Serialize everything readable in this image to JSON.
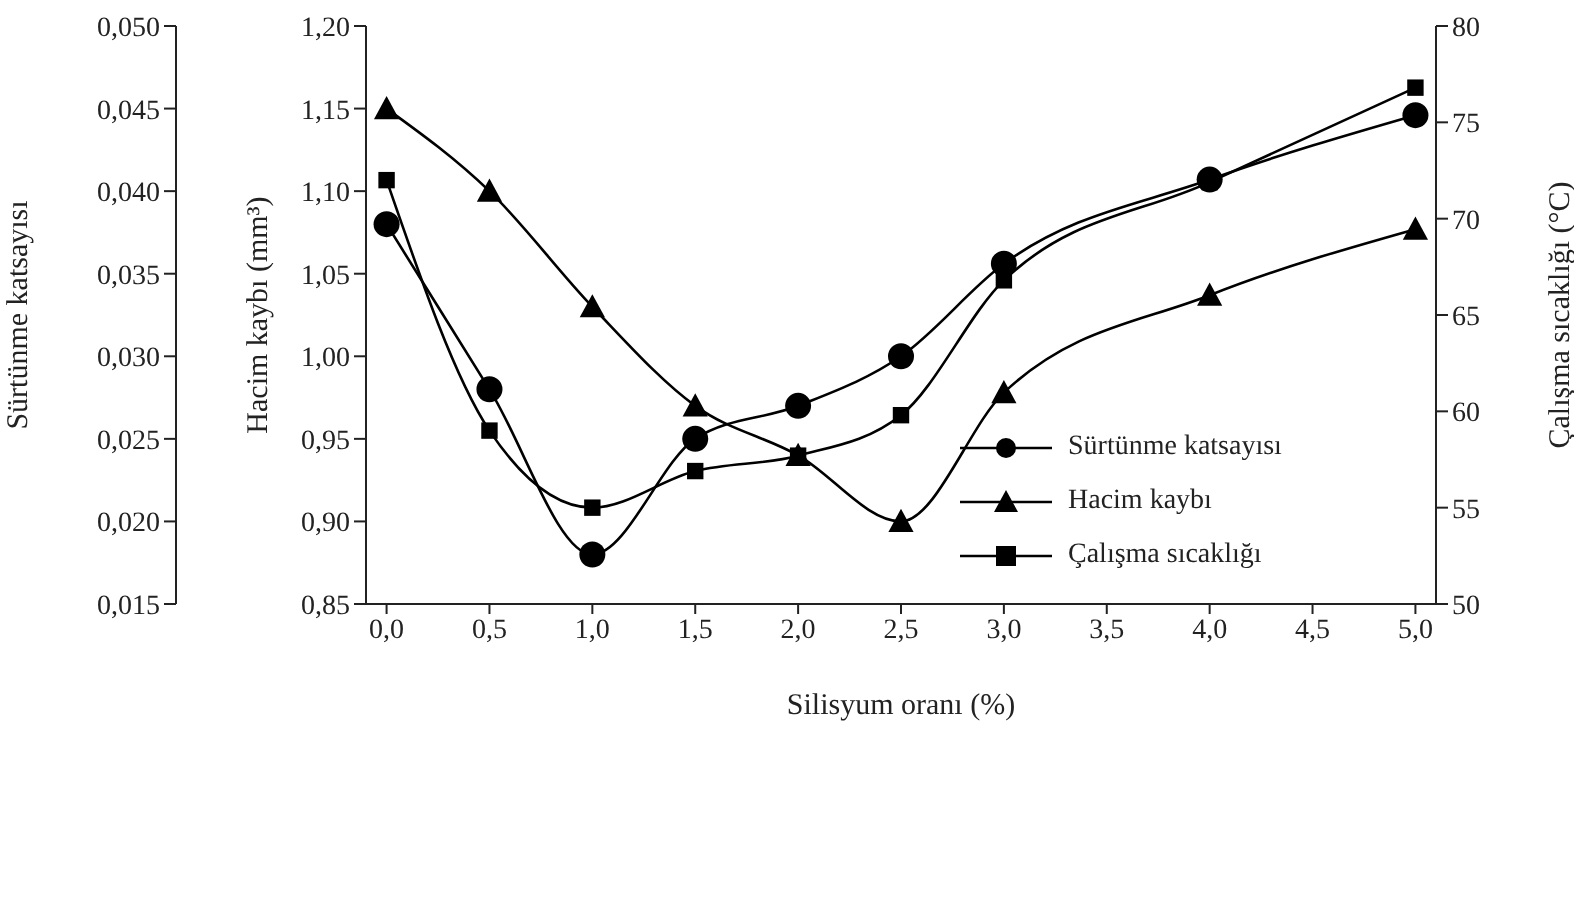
{
  "chart_data": {
    "type": "line",
    "xlabel": "Silisyum oranı (%)",
    "ylabel": "Hacim kaybı (mm³)",
    "y2label": "Sürtünme katsayısı",
    "y3label": "Çalışma sıcaklığı (°C)",
    "x": [
      0,
      0.5,
      1,
      1.5,
      2,
      2.5,
      3,
      4,
      5
    ],
    "series": [
      {
        "name": "Sürtünme katsayısı",
        "color": "#000000",
        "marker": "circle",
        "axis": "y2",
        "values": [
          0.038,
          0.028,
          0.018,
          0.025,
          0.027,
          0.03,
          0.0356,
          0.0407,
          0.0446
        ]
      },
      {
        "name": "Hacim kaybı",
        "color": "#000000",
        "marker": "triangle",
        "values": [
          1.15,
          1.1,
          1.03,
          0.97,
          0.94,
          0.9,
          0.978,
          1.037,
          1.077
        ]
      },
      {
        "name": "Çalışma sıcaklığı",
        "color": "#000000",
        "marker": "square",
        "axis": "y3",
        "values": [
          72.0,
          59.0,
          55.0,
          56.9,
          57.7,
          59.8,
          66.8,
          71.9,
          76.8
        ]
      }
    ],
    "xlim": [
      -0.1,
      5.1
    ],
    "xticks": [
      {
        "value": 0,
        "label": "0,0"
      },
      {
        "value": 0.5,
        "label": "0,5"
      },
      {
        "value": 1,
        "label": "1,0"
      },
      {
        "value": 1.5,
        "label": "1,5"
      },
      {
        "value": 2,
        "label": "2,0"
      },
      {
        "value": 2.5,
        "label": "2,5"
      },
      {
        "value": 3,
        "label": "3,0"
      },
      {
        "value": 3.5,
        "label": "3,5"
      },
      {
        "value": 4,
        "label": "4,0"
      },
      {
        "value": 4.5,
        "label": "4,5"
      },
      {
        "value": 5,
        "label": "5,0"
      }
    ],
    "ylim": [
      0.85,
      1.2
    ],
    "yticks": [
      {
        "value": 0.85,
        "label": "0,85"
      },
      {
        "value": 0.9,
        "label": "0,90"
      },
      {
        "value": 0.95,
        "label": "0,95"
      },
      {
        "value": 1.0,
        "label": "1,00"
      },
      {
        "value": 1.05,
        "label": "1,05"
      },
      {
        "value": 1.1,
        "label": "1,10"
      },
      {
        "value": 1.15,
        "label": "1,15"
      },
      {
        "value": 1.2,
        "label": "1,20"
      }
    ],
    "y2lim": [
      0.015,
      0.05
    ],
    "y2ticks": [
      {
        "value": 0.015,
        "label": "0,015"
      },
      {
        "value": 0.02,
        "label": "0,020"
      },
      {
        "value": 0.025,
        "label": "0,025"
      },
      {
        "value": 0.03,
        "label": "0,030"
      },
      {
        "value": 0.035,
        "label": "0,035"
      },
      {
        "value": 0.04,
        "label": "0,040"
      },
      {
        "value": 0.045,
        "label": "0,045"
      },
      {
        "value": 0.05,
        "label": "0,050"
      }
    ],
    "y3lim": [
      50,
      80
    ],
    "y3ticks": [
      50,
      55,
      60,
      65,
      70,
      75,
      80
    ],
    "grid": false,
    "legend": "right",
    "line_style": "solid"
  }
}
